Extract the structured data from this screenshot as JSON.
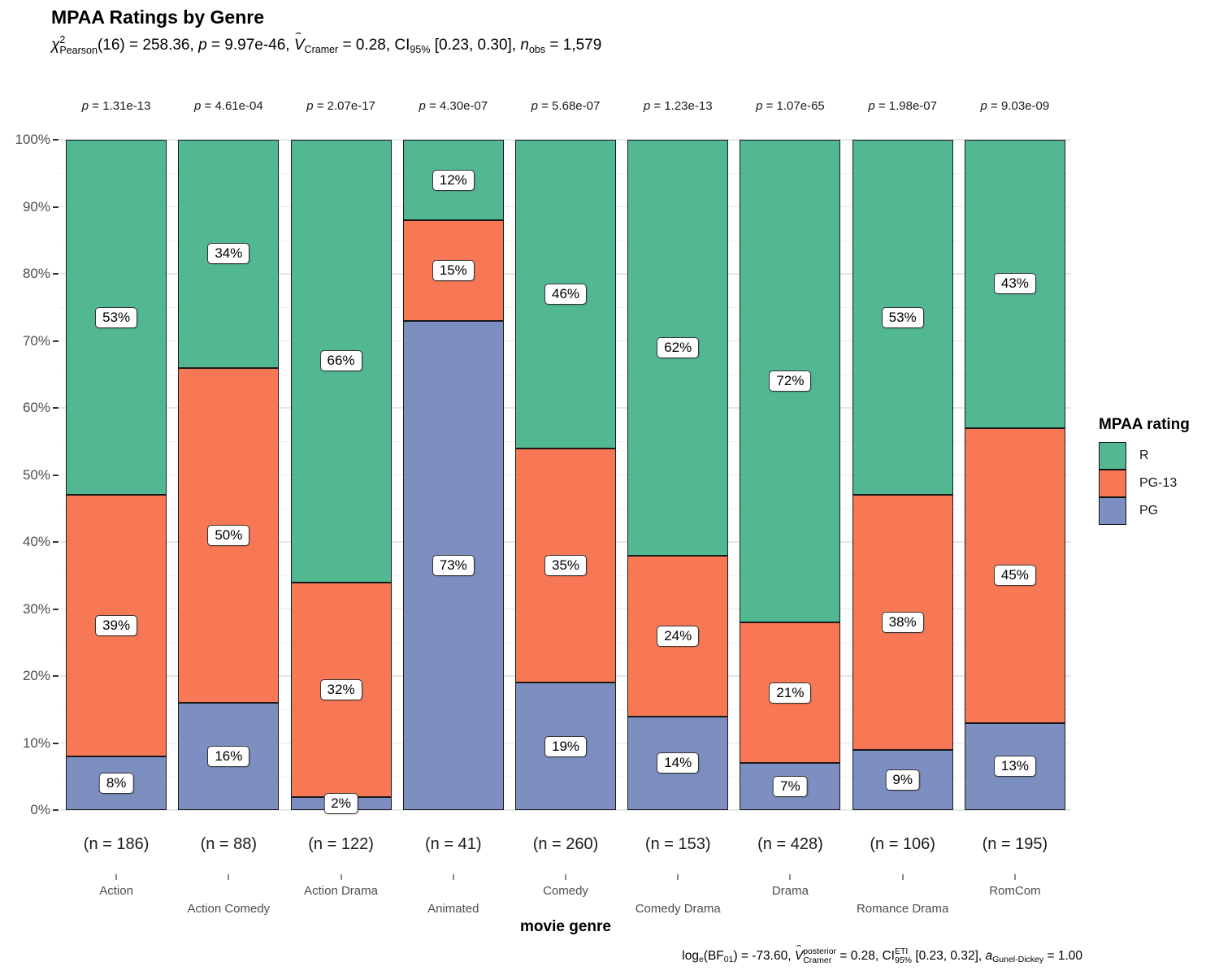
{
  "title": "MPAA Ratings by Genre",
  "subtitle": {
    "chi": "χ",
    "chi_sup": "2",
    "chi_sub": "Pearson",
    "s1": "(16) = 258.36, ",
    "p": "p",
    "s2": " = 9.97e-46, ",
    "v": "V",
    "v_hat": "ˆ",
    "v_sub": "Cramer",
    "s3": " = 0.28, CI",
    "ci_sub": "95%",
    "s4": " [0.23, 0.30], ",
    "n": "n",
    "n_sub": "obs",
    "s5": " = 1,579"
  },
  "caption": {
    "c1": "log",
    "c1_sub": "e",
    "c2": "(BF",
    "c2_sub": "01",
    "c3": ") = -73.60, ",
    "v": "V",
    "v_hat": "ˆ",
    "v_sup": "posterior",
    "v_sub": "Cramer",
    "c4": " = 0.28, CI",
    "ci_sup": "ETI",
    "ci_sub": "95%",
    "c5": " [0.23, 0.32], ",
    "a": "a",
    "a_sub": "Gunel-Dickey",
    "c6": " = 1.00"
  },
  "legend": {
    "title": "MPAA rating",
    "items": [
      {
        "label": "R",
        "color": "#52B892"
      },
      {
        "label": "PG-13",
        "color": "#F87855"
      },
      {
        "label": "PG",
        "color": "#7D8EC1"
      }
    ]
  },
  "x_axis_label": "movie genre",
  "chart_data": {
    "type": "bar",
    "variant": "stacked-percent",
    "title": "MPAA Ratings by Genre",
    "xlabel": "movie genre",
    "ylabel": "",
    "ylim": [
      0,
      100
    ],
    "grid": true,
    "legend_position": "right",
    "y_tick_labels": [
      "0%",
      "10%",
      "20%",
      "30%",
      "40%",
      "50%",
      "60%",
      "70%",
      "80%",
      "90%",
      "100%"
    ],
    "categories": [
      "Action",
      "Action Comedy",
      "Action Drama",
      "Animated",
      "Comedy",
      "Comedy Drama",
      "Drama",
      "Romance Drama",
      "RomCom"
    ],
    "n_labels": [
      "(n = 186)",
      "(n = 88)",
      "(n = 122)",
      "(n = 41)",
      "(n = 260)",
      "(n = 153)",
      "(n = 428)",
      "(n = 106)",
      "(n = 195)"
    ],
    "p_prefix": "p",
    "p_values": [
      "= 1.31e-13",
      "= 4.61e-04",
      "= 2.07e-17",
      "= 4.30e-07",
      "= 5.68e-07",
      "= 1.23e-13",
      "= 1.07e-65",
      "= 1.98e-07",
      "= 9.03e-09"
    ],
    "series": [
      {
        "name": "PG",
        "color": "#7D8EC1",
        "values": [
          8,
          16,
          2,
          73,
          19,
          14,
          7,
          9,
          13
        ]
      },
      {
        "name": "PG-13",
        "color": "#F87855",
        "values": [
          39,
          50,
          32,
          15,
          35,
          24,
          21,
          38,
          45
        ]
      },
      {
        "name": "R",
        "color": "#52B892",
        "values": [
          53,
          34,
          66,
          12,
          46,
          62,
          72,
          53,
          43
        ]
      }
    ],
    "label_suffix": "%"
  }
}
